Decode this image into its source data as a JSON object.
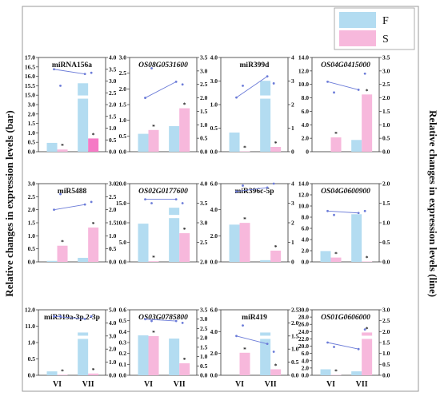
{
  "figure": {
    "ylabel_left": "Relative changes in expression levels (bar)",
    "ylabel_right": "Relative changes in expression levels (line)",
    "legend": [
      {
        "label": "F",
        "color": "#b3dcf1"
      },
      {
        "label": "S",
        "color": "#f7b8dc"
      }
    ],
    "colors": {
      "F": "#b3dcf1",
      "S": "#f7b8dc",
      "S_dark": "#f57ac5",
      "line": "#6b7bd8",
      "frame": "#9a9a9a"
    }
  },
  "chart_data": [
    {
      "type": "bar",
      "title": "miRNA156a",
      "italic": false,
      "categories": [
        "VI",
        "VII"
      ],
      "series": [
        {
          "name": "F",
          "values": [
            2.0,
            15.5
          ]
        },
        {
          "name": "S",
          "values": [
            0.5,
            3.0
          ]
        }
      ],
      "line_series": [
        {
          "name": "F",
          "values": [
            3.5,
            3.3
          ]
        },
        {
          "name": "S",
          "values": [
            2.8,
            3.35
          ]
        }
      ],
      "left_ticks": [
        "0.0",
        "0.5",
        "1.0",
        "1.5",
        "2.0",
        "3.0",
        "15.0",
        "15.5",
        "16.0",
        "16.5",
        "17.0"
      ],
      "left_break": true,
      "right_ylim": [
        0,
        4
      ],
      "right_ticks": [
        "0.0",
        "0.5",
        "1.0",
        "1.5",
        "2.0",
        "2.5",
        "3.0",
        "3.5",
        "4.0"
      ],
      "sig": [
        "VI-S",
        "VII-S"
      ]
    },
    {
      "type": "bar",
      "title": "OS08G0531600",
      "italic": true,
      "categories": [
        "VI",
        "VII"
      ],
      "series": [
        {
          "name": "F",
          "values": [
            0.7,
            1.0
          ]
        },
        {
          "name": "S",
          "values": [
            0.85,
            1.7
          ]
        }
      ],
      "line_series": [
        {
          "name": "F",
          "values": [
            2.0,
            2.6
          ]
        },
        {
          "name": "S",
          "values": [
            3.1,
            2.5
          ]
        }
      ],
      "left_ylim": [
        0,
        3.0
      ],
      "left_ticks": [
        "0.0",
        "0.5",
        "1.0",
        "1.5",
        "2.0",
        "2.5",
        "3.0"
      ],
      "right_ylim": [
        0,
        3.5
      ],
      "right_ticks": [
        "0.0",
        "0.5",
        "1.0",
        "1.5",
        "2.0",
        "2.5",
        "3.0",
        "3.5"
      ],
      "sig": [
        "VI-S",
        "VII-S"
      ]
    },
    {
      "type": "bar",
      "title": "miR399d",
      "italic": false,
      "categories": [
        "VI",
        "VII"
      ],
      "series": [
        {
          "name": "F",
          "values": [
            1.0,
            3.7
          ]
        },
        {
          "name": "S",
          "values": [
            0.02,
            0.25
          ]
        }
      ],
      "line_series": [
        {
          "name": "F",
          "values": [
            2.3,
            3.2
          ]
        },
        {
          "name": "S",
          "values": [
            2.8,
            2.9
          ]
        }
      ],
      "left_ylim": [
        0,
        4.0
      ],
      "left_ticks": [
        "0.0",
        "0.5",
        "1.0",
        "3.0",
        "4.0"
      ],
      "left_break": true,
      "right_ylim": [
        0,
        4
      ],
      "right_ticks": [
        "0",
        "1",
        "2",
        "3",
        "4"
      ],
      "sig": [
        "VI-S",
        "VII-S"
      ]
    },
    {
      "type": "bar",
      "title": "OS04G0415000",
      "italic": true,
      "categories": [
        "VI",
        "VII"
      ],
      "series": [
        {
          "name": "F",
          "values": [
            0,
            2.3
          ]
        },
        {
          "name": "S",
          "values": [
            2.8,
            11.2
          ]
        }
      ],
      "line_series": [
        {
          "name": "F",
          "values": [
            2.6,
            2.3
          ]
        },
        {
          "name": "S",
          "values": [
            2.2,
            2.9
          ]
        }
      ],
      "left_ylim": [
        0,
        15
      ],
      "left_ticks": [
        "0",
        "2.0",
        "4.0",
        "6.0",
        "8.0",
        "10.0",
        "12.0",
        "14.0"
      ],
      "right_ylim": [
        0,
        3.5
      ],
      "right_ticks": [
        "0.0",
        "0.5",
        "1.0",
        "1.5",
        "2.0",
        "2.5",
        "3.0",
        "3.5"
      ],
      "sig": [
        "VI-S",
        "VII-S"
      ]
    },
    {
      "type": "bar",
      "title": "miR5488",
      "italic": false,
      "categories": [
        "VI",
        "VII"
      ],
      "series": [
        {
          "name": "F",
          "values": [
            0.05,
            0.2
          ]
        },
        {
          "name": "S",
          "values": [
            0.8,
            1.7
          ]
        }
      ],
      "line_series": [
        {
          "name": "F",
          "values": [
            2.0,
            2.2
          ]
        },
        {
          "name": "S",
          "values": [
            2.6,
            2.3
          ]
        }
      ],
      "left_ylim": [
        0,
        3.0
      ],
      "left_ticks": [
        "0.0",
        "0.5",
        "1.0",
        "1.5",
        "2.0",
        "2.5",
        "3.0"
      ],
      "right_ylim": [
        0,
        3.0
      ],
      "right_ticks": [
        "0.0",
        "0.5",
        "1.0",
        "1.5",
        "2.0",
        "2.5",
        "3.0"
      ],
      "sig": [
        "VI-S",
        "VII-S"
      ]
    },
    {
      "type": "bar",
      "title": "OS02G0177600",
      "italic": true,
      "categories": [
        "VI",
        "VII"
      ],
      "series": [
        {
          "name": "F",
          "values": [
            6.0,
            8.5
          ]
        },
        {
          "name": "S",
          "values": [
            0.1,
            4.5
          ]
        }
      ],
      "line_series": [
        {
          "name": "F",
          "values": [
            3.6,
            3.6
          ]
        },
        {
          "name": "S",
          "values": [
            3.5,
            3.5
          ]
        }
      ],
      "left_ticks": [
        "0.0",
        "5.0",
        "10.0",
        "15.0",
        "20.0"
      ],
      "left_break": true,
      "right_ylim": [
        2.0,
        4.0
      ],
      "right_ticks": [
        "2.0",
        "2.5",
        "3.0",
        "3.5",
        "4.0"
      ],
      "sig": [
        "VI-S",
        "VII-S"
      ]
    },
    {
      "type": "bar",
      "title": "miR396c-5p",
      "italic": false,
      "categories": [
        "VI",
        "VII"
      ],
      "series": [
        {
          "name": "F",
          "values": [
            4.3,
            0.2
          ]
        },
        {
          "name": "S",
          "values": [
            4.5,
            1.3
          ]
        }
      ],
      "line_series": [
        {
          "name": "F",
          "values": [
            3.6,
            3.8
          ]
        },
        {
          "name": "S",
          "values": [
            3.9,
            4.0
          ]
        }
      ],
      "left_ylim": [
        0,
        7.0
      ],
      "left_ticks": [
        "0.0",
        "2.0",
        "4.0",
        "6.0"
      ],
      "right_ylim": [
        0,
        4
      ],
      "right_ticks": [
        "0",
        "1",
        "2",
        "3",
        "4"
      ],
      "sig": [
        "VI-S",
        "VII-S"
      ]
    },
    {
      "type": "bar",
      "title": "OS04G0600900",
      "italic": true,
      "categories": [
        "VI",
        "VII"
      ],
      "series": [
        {
          "name": "F",
          "values": [
            2.5,
            11.0
          ]
        },
        {
          "name": "S",
          "values": [
            1.0,
            0.05
          ]
        }
      ],
      "line_series": [
        {
          "name": "F",
          "values": [
            1.3,
            1.25
          ]
        },
        {
          "name": "S",
          "values": [
            1.2,
            1.3
          ]
        }
      ],
      "left_ylim": [
        0,
        14
      ],
      "left_ticks": [
        "0.0",
        "2.0",
        "4.0",
        "6.0",
        "8.0",
        "10.0",
        "12.0",
        "14.0"
      ],
      "right_ylim": [
        0,
        2.0
      ],
      "right_ticks": [
        "0.0",
        "0.5",
        "1.0",
        "1.5",
        "2.0"
      ],
      "sig": [
        "VI-S",
        "VII-S"
      ]
    },
    {
      "type": "bar",
      "title": "miR319a-3p.2-3p",
      "italic": false,
      "categories": [
        "VI",
        "VII"
      ],
      "series": [
        {
          "name": "F",
          "values": [
            1.0,
            11.0
          ]
        },
        {
          "name": "S",
          "values": [
            0.15,
            0.45
          ]
        }
      ],
      "line_series": [
        {
          "name": "F",
          "values": [
            4.5,
            4.3
          ]
        },
        {
          "name": "S",
          "values": [
            4.5,
            4.5
          ]
        }
      ],
      "left_ticks": [
        "0.0",
        "0.5",
        "1.0",
        "11.0",
        "12.0"
      ],
      "left_break": true,
      "right_ylim": [
        0,
        5.0
      ],
      "right_ticks": [
        "0.0",
        "1.0",
        "2.0",
        "3.0",
        "4.0",
        "5.0"
      ],
      "sig": [
        "VI-S",
        "VII-S"
      ]
    },
    {
      "type": "bar",
      "title": "OS03G0785800",
      "italic": true,
      "categories": [
        "VI",
        "VII"
      ],
      "series": [
        {
          "name": "F",
          "values": [
            0.5,
            0.46
          ]
        },
        {
          "name": "S",
          "values": [
            0.49,
            0.15
          ]
        }
      ],
      "line_series": [
        {
          "name": "F",
          "values": [
            3.0,
            2.9
          ]
        },
        {
          "name": "S",
          "values": [
            2.9,
            2.8
          ]
        }
      ],
      "left_ylim": [
        0,
        0.6
      ],
      "left_ticks": [
        "0.0",
        "0.1",
        "0.2",
        "0.3",
        "0.4",
        "0.5",
        "0.6"
      ],
      "right_ylim": [
        0,
        3.5
      ],
      "right_ticks": [
        "0.0",
        "0.5",
        "1.0",
        "1.5",
        "2.0",
        "2.5",
        "3.0",
        "3.5"
      ],
      "sig": [
        "VI-S",
        "VII-S"
      ]
    },
    {
      "type": "bar",
      "title": "miR419",
      "italic": false,
      "categories": [
        "VI",
        "VII"
      ],
      "series": [
        {
          "name": "F",
          "values": [
            0,
            5.7
          ]
        },
        {
          "name": "S",
          "values": [
            3.0,
            0.8
          ]
        }
      ],
      "line_series": [
        {
          "name": "F",
          "values": [
            1.5,
            1.2
          ]
        },
        {
          "name": "S",
          "values": [
            1.9,
            0.9
          ]
        }
      ],
      "left_ticks": [
        "0.0",
        "2.0",
        "4.0",
        "6.0"
      ],
      "left_break": true,
      "right_ylim": [
        0,
        2.5
      ],
      "right_ticks": [
        "0.0",
        "0.5",
        "1.0",
        "1.5",
        "2.0",
        "2.5"
      ],
      "sig": [
        "VI-S",
        "VII-S"
      ]
    },
    {
      "type": "bar",
      "title": "OS01G0606000",
      "italic": true,
      "categories": [
        "VI",
        "VII"
      ],
      "series": [
        {
          "name": "F",
          "values": [
            3.5,
            2.3
          ]
        },
        {
          "name": "S",
          "values": [
            0.1,
            25.0
          ]
        }
      ],
      "line_series": [
        {
          "name": "F",
          "values": [
            1.5,
            1.2
          ]
        },
        {
          "name": "S",
          "values": [
            1.3,
            2.1
          ]
        }
      ],
      "left_ticks": [
        "0.0",
        "2.0",
        "4.0",
        "6.0",
        "20.0",
        "22.0",
        "24.0",
        "26.0",
        "28.0",
        "30.0"
      ],
      "left_break": true,
      "right_ylim": [
        0,
        3.0
      ],
      "right_ticks": [
        "0.0",
        "0.5",
        "1.0",
        "1.5",
        "2.0",
        "2.5",
        "3.0"
      ],
      "sig": [
        "VI-S",
        "VII-S"
      ]
    }
  ]
}
